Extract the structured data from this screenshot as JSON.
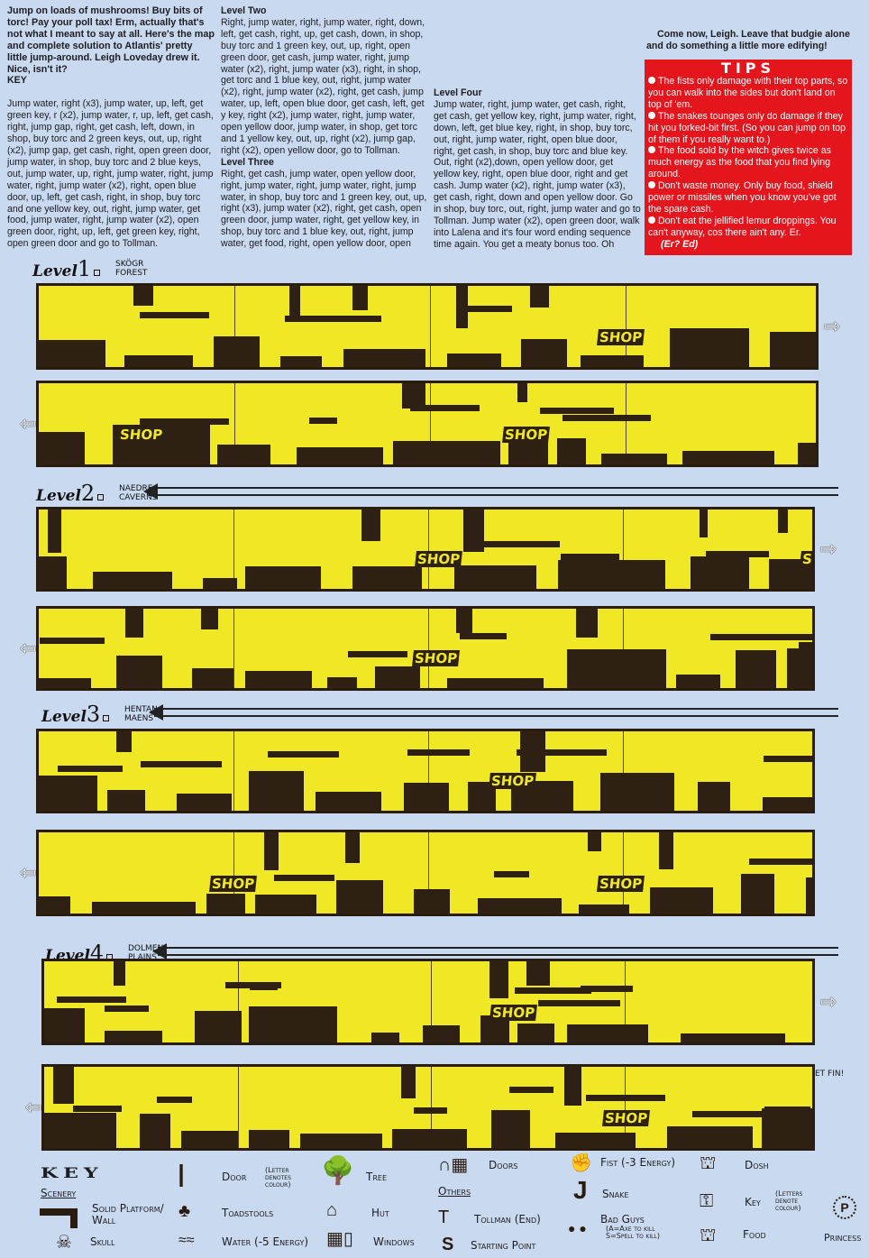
{
  "intro": {
    "text_1": "Jump on loads of mushrooms! Buy bits of torc! Pay your poll tax! Erm, actually that's not what I meant to say at all. Here's the map and complete solution to Atlantis' pretty little jump-around. ",
    "author": "Leigh Loveday",
    "text_2": " drew it. Nice, isn't it?",
    "key_label": "KEY"
  },
  "level_one_text": "Jump water, right (x3), jump water, up, left, get green key, r (x2), jump water, r, up, left, get cash, right, jump gap, right, get cash, left, down, in shop, buy torc and 2 green keys, out, up, right (x2), jump gap, get cash, right, open green door, jump water, in shop, buy torc and 2 blue keys, out, jump water, up, right, jump water, right, jump water, right, jump water (x2), right, open blue door, up, left, get cash, right, in shop, buy torc and one yellow key, out, right, jump water, get food, jump water, right, jump water (x2), open green door, right, up, left, get green key, right, open green door and go to Tollman.",
  "level_two": {
    "heading": "Level Two",
    "text": "Right, jump water, right, jump water, right, down, left, get cash, right, up, get cash, down, in shop, buy torc and 1 green key, out, up, right, open green door, get cash, jump water, right, jump water (x2), right, jump water (x3), right, in shop, get torc and 1 blue key, out, right, jump water (x2), right, jump water (x2), right, get cash, jump water, up, left, open blue door, get cash, left, get y key, right (x2), jump water, right, jump water, open yellow door, jump water, in shop, get torc and 1 yellow key, out, up, right (x2), jump gap, right (x2), open yellow door, go to Tollman."
  },
  "level_three": {
    "heading": "Level Three",
    "text": "Right, get cash, jump water, open yellow door, right, jump water, right, jump water, right, jump water, in shop, buy torc and 1 green key, out, up, right (x3), jump water (x2), right, get cash, open green door, jump water, right, get yellow key, in shop, buy torc and 1 blue key, out, right, jump water, get food, right, open yellow door, open blue door, right, open blue door, jump water, up, get cash, left (x2), get green key, right (x2), jump water (x2), right, jump water, in shop, buy torc and 1 yellow key, out, right, jump water, open green door, right, jump water, down, left, get blue key, right, jump water, open blue door, go to Tollman."
  },
  "level_four": {
    "heading": "Level Four",
    "text": "Jump water, right, jump water, get cash, right, get cash, get yellow key, right, jump water, right, down, left, get blue key, right, in shop, buy torc, out, right, jump water, right, open blue door, right, get cash, in shop, buy torc and blue key. Out, right (x2),down, open yellow door, get yellow key, right, open blue door, right and get cash. Jump water (x2), right, jump water (x3), get cash, right, down and open yellow door. Go in shop, buy torc, out, right, jump water and go to Tollman. Jump water (x2), open green door, walk into Lalena and it's four word ending sequence time again. You get a meaty bonus too. Oh Gerald, cease prodding that tripe at once... etc, etc."
  },
  "outro": "Come now, Leigh. Leave that budgie alone and do something a little more edifying!",
  "tips": {
    "title": "TIPS",
    "items": [
      "The fists only damage with their top parts, so you can walk into the sides but don't land on top of 'em.",
      "The snakes tounges only do damage if they hit you forked-bit first. (So you can jump on top of them if you really want to.)",
      "The food sold by the witch gives twice as much energy as the food that you find lying around.",
      "Don't waste money. Only buy food, shield power or missiles when you know you've got the spare cash.",
      "Don't eat the jellified lemur droppings. You can't anyway, cos there ain't any. Er."
    ],
    "editor_note": "(Er? Ed)"
  },
  "levels": [
    {
      "word": "Level",
      "number": "1",
      "name_1": "SKÖGR",
      "name_2": "FOREST"
    },
    {
      "word": "Level",
      "number": "2",
      "name_1": "NAEDRE",
      "name_2": "CAVERNS"
    },
    {
      "word": "Level",
      "number": "3",
      "name_1": "HENTAN",
      "name_2": "MAENS"
    },
    {
      "word": "Level",
      "number": "4",
      "name_1": "DOLMEN",
      "name_2": "PLAINS"
    }
  ],
  "shop_label": "SHOP",
  "ending": "ET FIN!",
  "colors": {
    "background": "#c9d9ef",
    "map_yellow": "#f1e825",
    "map_ink": "#2e2012",
    "tips_red": "#e4151d"
  },
  "key": {
    "title": "KEY",
    "scenery": "Scenery",
    "others": "Others",
    "items": {
      "solid": "Solid Platform/ Wall",
      "skull": "Skull",
      "door": "Door",
      "door_note": "(Letter denotes colour)",
      "toadstools": "Toadstools",
      "water": "Water (-5 Energy)",
      "tree": "Tree",
      "hut": "Hut",
      "windows": "Windows",
      "doors": "Doors",
      "tollman": "Tollman (End)",
      "start": "Starting Point",
      "fist": "Fist (-3 Energy)",
      "snake": "Snake",
      "bad_guys": "Bad Guys",
      "bad_note": "(A=Axe to kill S=Spell to kill)",
      "dosh": "Dosh",
      "key": "Key",
      "key_note": "(Letters denote colour)",
      "food": "Food",
      "princess": "Princess"
    }
  }
}
